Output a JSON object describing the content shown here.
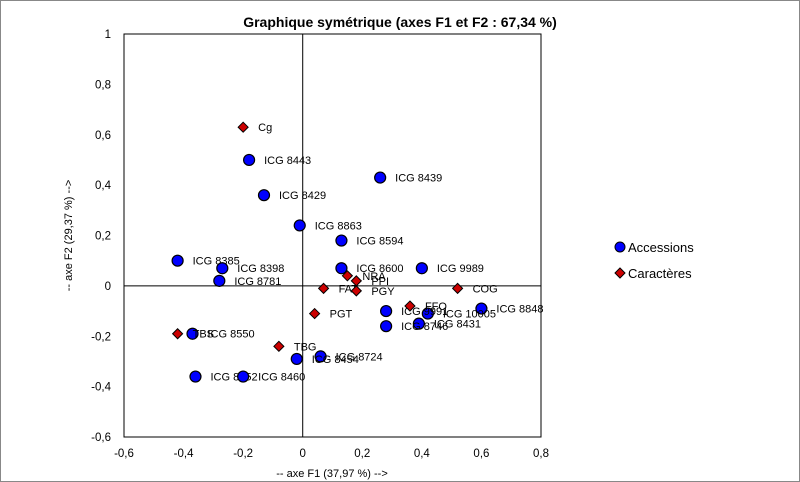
{
  "chart_data": {
    "type": "scatter",
    "title": "Graphique symétrique (axes F1 et F2 : 67,34 %)",
    "xlabel": "-- axe F1 (37,97 %) -->",
    "ylabel": "-- axe F2 (29,37 %) -->",
    "xlim": [
      -0.6,
      0.8
    ],
    "ylim": [
      -0.6,
      1
    ],
    "xticks": [
      "-0,6",
      "-0,4",
      "-0,2",
      "0",
      "0,2",
      "0,4",
      "0,6",
      "0,8"
    ],
    "yticks": [
      "1",
      "0,8",
      "0,6",
      "0,4",
      "0,2",
      "0",
      "-0,2",
      "-0,4",
      "-0,6"
    ],
    "legend_position": "right",
    "series": [
      {
        "name": "Accessions",
        "color": "#0000ff",
        "marker": "circle",
        "points": [
          {
            "label": "ICG 8443",
            "x": -0.18,
            "y": 0.5
          },
          {
            "label": "ICG 8439",
            "x": 0.26,
            "y": 0.43
          },
          {
            "label": "ICG 8429",
            "x": -0.13,
            "y": 0.36
          },
          {
            "label": "ICG 8863",
            "x": -0.01,
            "y": 0.24
          },
          {
            "label": "ICG 8594",
            "x": 0.13,
            "y": 0.18
          },
          {
            "label": "ICG 8385",
            "x": -0.42,
            "y": 0.1
          },
          {
            "label": "ICG 8398",
            "x": -0.27,
            "y": 0.07
          },
          {
            "label": "ICG 8600",
            "x": 0.13,
            "y": 0.07
          },
          {
            "label": "ICG 9989",
            "x": 0.4,
            "y": 0.07
          },
          {
            "label": "ICG 8781",
            "x": -0.28,
            "y": 0.02
          },
          {
            "label": "ICG 8848",
            "x": 0.6,
            "y": -0.09
          },
          {
            "label": "ICG 10005",
            "x": 0.42,
            "y": -0.11
          },
          {
            "label": "ICG 9991",
            "x": 0.28,
            "y": -0.1
          },
          {
            "label": "ICG 8431",
            "x": 0.39,
            "y": -0.15
          },
          {
            "label": "ICG 8746",
            "x": 0.28,
            "y": -0.16
          },
          {
            "label": "ICG 8550",
            "x": -0.37,
            "y": -0.19
          },
          {
            "label": "ICG 8724",
            "x": 0.06,
            "y": -0.28
          },
          {
            "label": "ICG 8454",
            "x": -0.02,
            "y": -0.29
          },
          {
            "label": "ICG 8352",
            "x": -0.36,
            "y": -0.36
          },
          {
            "label": "ICG 8460",
            "x": -0.2,
            "y": -0.36
          }
        ]
      },
      {
        "name": "Caractères",
        "color": "#cc0000",
        "marker": "diamond",
        "points": [
          {
            "label": "Cg",
            "x": -0.2,
            "y": 0.63
          },
          {
            "label": "NRA",
            "x": 0.15,
            "y": 0.04
          },
          {
            "label": "PPI",
            "x": 0.18,
            "y": 0.02
          },
          {
            "label": "FAT",
            "x": 0.07,
            "y": -0.01
          },
          {
            "label": "PGY",
            "x": 0.18,
            "y": -0.02
          },
          {
            "label": "COG",
            "x": 0.52,
            "y": -0.01
          },
          {
            "label": "FFO",
            "x": 0.36,
            "y": -0.08
          },
          {
            "label": "PGT",
            "x": 0.04,
            "y": -0.11
          },
          {
            "label": "TBG",
            "x": -0.08,
            "y": -0.24
          },
          {
            "label": "TBS",
            "x": -0.42,
            "y": -0.19
          }
        ]
      }
    ]
  }
}
